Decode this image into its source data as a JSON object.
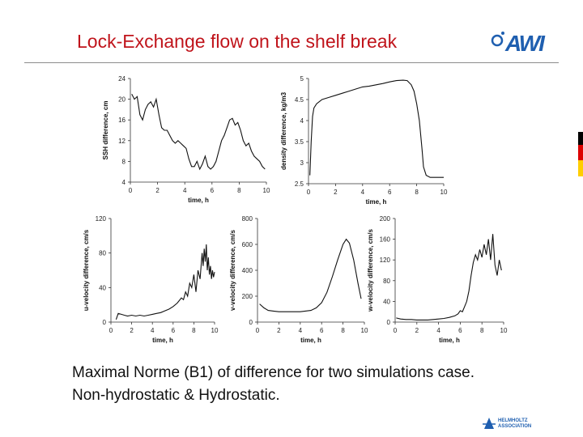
{
  "slide": {
    "title": "Lock-Exchange flow on the shelf break",
    "logo_text": "AWI",
    "caption_line1": "Maximal Norme (B1) of difference for two simulations case.",
    "caption_line2": "Non-hydrostatic & Hydrostatic.",
    "footer_logo_line1": "HELMHOLTZ",
    "footer_logo_line2": "ASSOCIATION",
    "flag_colors": [
      "#000000",
      "#dd0000",
      "#ffce00"
    ]
  },
  "chart_data": [
    {
      "type": "line",
      "ylabel": "SSH difference, cm",
      "xlabel": "time, h",
      "xlim": [
        0,
        10
      ],
      "ylim": [
        4,
        24
      ],
      "xticks": [
        0,
        2,
        4,
        6,
        8,
        10
      ],
      "yticks": [
        4,
        8,
        12,
        16,
        20,
        24
      ],
      "x": [
        0.1,
        0.3,
        0.5,
        0.7,
        0.9,
        1.1,
        1.3,
        1.5,
        1.7,
        1.9,
        2.1,
        2.3,
        2.5,
        2.7,
        2.9,
        3.1,
        3.3,
        3.5,
        3.7,
        3.9,
        4.1,
        4.3,
        4.5,
        4.7,
        4.9,
        5.1,
        5.3,
        5.5,
        5.7,
        5.9,
        6.1,
        6.3,
        6.5,
        6.7,
        6.9,
        7.1,
        7.3,
        7.5,
        7.7,
        7.9,
        8.1,
        8.3,
        8.5,
        8.7,
        8.9,
        9.1,
        9.3,
        9.5,
        9.7,
        9.9
      ],
      "y": [
        21,
        20,
        20.5,
        17,
        16,
        18,
        19,
        19.5,
        18.5,
        20,
        17,
        14.5,
        14,
        14,
        13,
        12,
        11.5,
        12,
        11.5,
        11,
        10.5,
        8.5,
        7,
        7,
        8,
        6.5,
        7.5,
        9,
        7,
        6.5,
        7,
        8,
        10,
        12,
        13,
        14.5,
        16,
        16.3,
        15,
        15.5,
        14,
        12,
        11,
        11.5,
        10,
        9,
        8.5,
        8,
        7,
        6.5
      ]
    },
    {
      "type": "line",
      "ylabel": "density difference, kg/m3",
      "xlabel": "time, h",
      "xlim": [
        0,
        10
      ],
      "ylim": [
        2.5,
        5
      ],
      "xticks": [
        0,
        2,
        4,
        6,
        8,
        10
      ],
      "yticks": [
        2.5,
        3,
        3.5,
        4,
        4.5,
        5
      ],
      "x": [
        0.1,
        0.2,
        0.3,
        0.4,
        0.6,
        0.8,
        1.0,
        1.5,
        2.0,
        2.5,
        3.0,
        3.5,
        4.0,
        4.5,
        5.0,
        5.5,
        6.0,
        6.5,
        7.0,
        7.3,
        7.6,
        7.8,
        8.0,
        8.2,
        8.4,
        8.5,
        8.7,
        9.0,
        9.5,
        10.0
      ],
      "y": [
        2.7,
        3.5,
        4.1,
        4.3,
        4.4,
        4.45,
        4.5,
        4.55,
        4.6,
        4.65,
        4.7,
        4.75,
        4.8,
        4.82,
        4.85,
        4.88,
        4.92,
        4.95,
        4.96,
        4.95,
        4.85,
        4.7,
        4.4,
        4.0,
        3.3,
        2.9,
        2.7,
        2.65,
        2.65,
        2.65
      ]
    },
    {
      "type": "line",
      "ylabel": "u-velocity difference, cm/s",
      "xlabel": "time, h",
      "xlim": [
        0,
        10
      ],
      "ylim": [
        0,
        120
      ],
      "xticks": [
        0,
        2,
        4,
        6,
        8,
        10
      ],
      "yticks": [
        0,
        40,
        80,
        120
      ],
      "x": [
        0.5,
        0.7,
        1.0,
        1.3,
        1.6,
        2.0,
        2.4,
        2.8,
        3.2,
        3.6,
        4.0,
        4.4,
        4.8,
        5.2,
        5.6,
        6.0,
        6.4,
        6.8,
        7.0,
        7.2,
        7.4,
        7.6,
        7.8,
        8.0,
        8.2,
        8.4,
        8.6,
        8.8,
        8.9,
        9.0,
        9.1,
        9.2,
        9.3,
        9.4,
        9.5,
        9.6,
        9.7,
        9.8,
        9.9,
        10.0
      ],
      "y": [
        3,
        10,
        9,
        8,
        7,
        8,
        7,
        8,
        7,
        8,
        9,
        10,
        11,
        13,
        15,
        18,
        22,
        28,
        26,
        35,
        30,
        45,
        40,
        55,
        35,
        60,
        50,
        80,
        65,
        85,
        70,
        90,
        60,
        75,
        55,
        65,
        50,
        60,
        52,
        58
      ]
    },
    {
      "type": "line",
      "ylabel": "v-velocity difference, cm/s",
      "xlabel": "time, h",
      "xlim": [
        0,
        10
      ],
      "ylim": [
        0,
        800
      ],
      "xticks": [
        0,
        2,
        4,
        6,
        8,
        10
      ],
      "yticks": [
        0,
        200,
        400,
        600,
        800
      ],
      "x": [
        0.2,
        0.6,
        1.0,
        1.5,
        2.0,
        3.0,
        4.0,
        5.0,
        5.5,
        6.0,
        6.5,
        7.0,
        7.5,
        8.0,
        8.3,
        8.6,
        9.0,
        9.4,
        9.7
      ],
      "y": [
        140,
        110,
        90,
        85,
        80,
        80,
        80,
        90,
        110,
        150,
        230,
        350,
        480,
        600,
        640,
        610,
        480,
        300,
        180
      ]
    },
    {
      "type": "line",
      "ylabel": "w-velocity difference, cm/s",
      "xlabel": "time, h",
      "xlim": [
        0,
        10
      ],
      "ylim": [
        0,
        200
      ],
      "xticks": [
        0,
        2,
        4,
        6,
        8,
        10
      ],
      "yticks": [
        0,
        40,
        80,
        120,
        160,
        200
      ],
      "x": [
        0.1,
        0.5,
        1.0,
        1.5,
        2.0,
        2.5,
        3.0,
        3.5,
        4.0,
        4.5,
        5.0,
        5.5,
        5.8,
        6.0,
        6.2,
        6.4,
        6.6,
        6.8,
        7.0,
        7.2,
        7.4,
        7.6,
        7.8,
        8.0,
        8.2,
        8.4,
        8.6,
        8.8,
        9.0,
        9.2,
        9.4,
        9.6,
        9.8
      ],
      "y": [
        8,
        6,
        5,
        5,
        4,
        4,
        4,
        5,
        6,
        7,
        9,
        12,
        16,
        22,
        20,
        30,
        40,
        60,
        90,
        115,
        130,
        120,
        140,
        125,
        150,
        130,
        160,
        120,
        170,
        110,
        90,
        120,
        100
      ]
    }
  ]
}
